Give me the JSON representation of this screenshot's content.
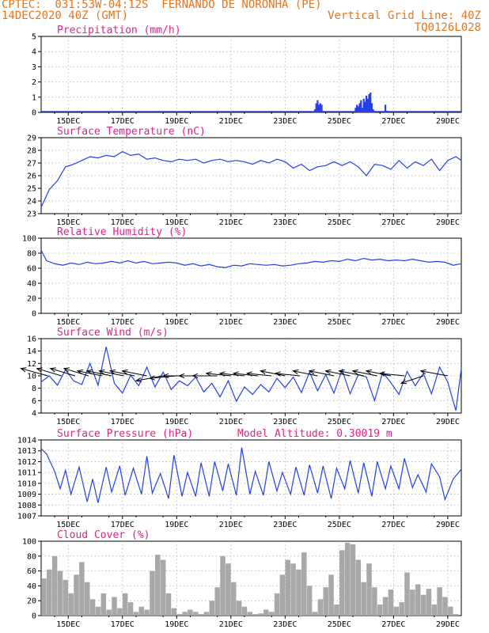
{
  "header": {
    "left_line1": "CPTEC:  031:53W-04:12S  FERNANDO DE NORONHA (PE)",
    "left_line2": "14DEC2020 40Z (GMT)",
    "right_line2": "Vertical Grid Line: 40Z",
    "right_line3": "TQ0126L028"
  },
  "x_axis": {
    "domain": [
      0,
      15.5
    ],
    "tick_positions": [
      1,
      3,
      5,
      7,
      9,
      11,
      13,
      15
    ],
    "tick_labels": [
      "15DEC",
      "17DEC",
      "19DEC",
      "21DEC",
      "23DEC",
      "25DEC",
      "27DEC",
      "29DEC"
    ]
  },
  "colors": {
    "line": "#2440e6",
    "bar_precip": "#2440e6",
    "bar_cloud": "#a8a8a8",
    "title": "#e0208c",
    "header": "#e8741c",
    "arrow": "#000000"
  },
  "chart_data": [
    {
      "type": "bar",
      "title": "Precipitation (mm/h)",
      "ylim": [
        0,
        5
      ],
      "yticks": [
        "0",
        "1",
        "2",
        "3",
        "4",
        "5"
      ],
      "x": [
        10.1,
        10.15,
        10.2,
        10.25,
        10.3,
        10.35,
        11.6,
        11.65,
        11.7,
        11.75,
        11.8,
        11.85,
        11.9,
        11.95,
        12.0,
        12.05,
        12.1,
        12.15,
        12.2,
        12.25,
        12.3,
        12.7,
        12.75
      ],
      "values": [
        0.2,
        0.6,
        0.8,
        0.5,
        0.6,
        0.5,
        0.3,
        0.5,
        0.4,
        0.6,
        0.8,
        0.3,
        0.9,
        0.7,
        1.1,
        0.9,
        1.2,
        1.3,
        0.6,
        0.2,
        0.1,
        0.5,
        0.1
      ]
    },
    {
      "type": "line",
      "title": "Surface Temperature (nC)",
      "ylim": [
        23,
        29
      ],
      "yticks": [
        "23",
        "24",
        "25",
        "26",
        "27",
        "28",
        "29"
      ],
      "x": [
        0,
        0.3,
        0.6,
        0.9,
        1.2,
        1.5,
        1.8,
        2.1,
        2.4,
        2.7,
        3.0,
        3.3,
        3.6,
        3.9,
        4.2,
        4.5,
        4.8,
        5.1,
        5.4,
        5.7,
        6.0,
        6.3,
        6.6,
        6.9,
        7.2,
        7.5,
        7.8,
        8.1,
        8.4,
        8.7,
        9.0,
        9.3,
        9.6,
        9.9,
        10.2,
        10.5,
        10.8,
        11.1,
        11.4,
        11.7,
        12.0,
        12.3,
        12.6,
        12.9,
        13.2,
        13.5,
        13.8,
        14.1,
        14.4,
        14.7,
        15.0,
        15.3,
        15.5
      ],
      "values": [
        23.5,
        24.9,
        25.6,
        26.7,
        26.9,
        27.2,
        27.5,
        27.4,
        27.6,
        27.5,
        27.9,
        27.6,
        27.7,
        27.3,
        27.4,
        27.2,
        27.1,
        27.3,
        27.2,
        27.3,
        27.0,
        27.2,
        27.3,
        27.1,
        27.2,
        27.1,
        26.9,
        27.2,
        27.0,
        27.3,
        27.1,
        26.6,
        26.9,
        26.4,
        26.7,
        26.8,
        27.1,
        26.8,
        27.1,
        26.7,
        26.0,
        26.9,
        26.8,
        26.5,
        27.2,
        26.6,
        27.1,
        26.8,
        27.3,
        26.4,
        27.2,
        27.5,
        27.2
      ]
    },
    {
      "type": "line",
      "title": "Relative Humidity (%)",
      "ylim": [
        0,
        100
      ],
      "yticks": [
        "0",
        "20",
        "40",
        "60",
        "80",
        "100"
      ],
      "x": [
        0,
        0.2,
        0.5,
        0.8,
        1.1,
        1.4,
        1.7,
        2.0,
        2.3,
        2.6,
        2.9,
        3.2,
        3.5,
        3.8,
        4.1,
        4.4,
        4.7,
        5.0,
        5.3,
        5.6,
        5.9,
        6.2,
        6.5,
        6.8,
        7.1,
        7.4,
        7.7,
        8.0,
        8.3,
        8.6,
        8.9,
        9.2,
        9.5,
        9.8,
        10.1,
        10.4,
        10.7,
        11.0,
        11.3,
        11.6,
        11.9,
        12.2,
        12.5,
        12.8,
        13.1,
        13.4,
        13.7,
        14.0,
        14.3,
        14.6,
        14.9,
        15.2,
        15.5
      ],
      "values": [
        84,
        70,
        66,
        64,
        67,
        65,
        68,
        66,
        67,
        69,
        67,
        70,
        67,
        69,
        66,
        67,
        68,
        67,
        64,
        66,
        63,
        65,
        62,
        61,
        64,
        63,
        66,
        65,
        64,
        65,
        63,
        64,
        66,
        67,
        69,
        68,
        70,
        69,
        72,
        70,
        73,
        71,
        72,
        70,
        71,
        70,
        72,
        70,
        68,
        69,
        68,
        64,
        66
      ]
    },
    {
      "type": "line",
      "title": "Surface Wind (m/s)",
      "ylim": [
        4,
        16
      ],
      "yticks": [
        "4",
        "6",
        "8",
        "10",
        "12",
        "14",
        "16"
      ],
      "x": [
        0,
        0.3,
        0.6,
        0.9,
        1.2,
        1.5,
        1.8,
        2.1,
        2.4,
        2.7,
        3.0,
        3.3,
        3.6,
        3.9,
        4.2,
        4.5,
        4.8,
        5.1,
        5.4,
        5.7,
        6.0,
        6.3,
        6.6,
        6.9,
        7.2,
        7.5,
        7.8,
        8.1,
        8.4,
        8.7,
        9.0,
        9.3,
        9.6,
        9.9,
        10.2,
        10.5,
        10.8,
        11.1,
        11.4,
        11.7,
        12.0,
        12.3,
        12.6,
        12.9,
        13.2,
        13.5,
        13.8,
        14.1,
        14.4,
        14.7,
        15.0,
        15.3,
        15.5
      ],
      "values": [
        9.0,
        10.0,
        8.5,
        11.0,
        9.2,
        8.6,
        12.0,
        8.5,
        14.7,
        8.8,
        7.2,
        10.1,
        8.4,
        11.4,
        8.2,
        10.6,
        7.8,
        9.2,
        8.4,
        9.8,
        7.4,
        8.8,
        6.6,
        9.2,
        5.9,
        8.2,
        7.0,
        8.6,
        7.4,
        9.6,
        8.1,
        9.8,
        7.3,
        10.6,
        7.6,
        10.2,
        7.2,
        11.0,
        7.1,
        10.2,
        9.8,
        6.0,
        10.6,
        8.9,
        7.0,
        10.7,
        8.4,
        10.4,
        7.1,
        11.4,
        9.0,
        4.4,
        11.2
      ]
    },
    {
      "type": "line",
      "title": "Surface Pressure (hPa)",
      "annotation": "Model Altitude: 0.30019 m",
      "ylim": [
        1007,
        1014
      ],
      "yticks": [
        "1007",
        "1008",
        "1009",
        "1010",
        "1011",
        "1012",
        "1013",
        "1014"
      ],
      "x": [
        0,
        0.2,
        0.5,
        0.7,
        0.9,
        1.1,
        1.4,
        1.7,
        1.9,
        2.1,
        2.4,
        2.6,
        2.9,
        3.1,
        3.4,
        3.7,
        3.9,
        4.1,
        4.4,
        4.7,
        4.9,
        5.2,
        5.4,
        5.7,
        5.9,
        6.2,
        6.4,
        6.7,
        6.9,
        7.2,
        7.4,
        7.7,
        7.9,
        8.2,
        8.4,
        8.7,
        8.9,
        9.2,
        9.4,
        9.7,
        9.9,
        10.2,
        10.4,
        10.7,
        10.9,
        11.2,
        11.4,
        11.7,
        11.9,
        12.2,
        12.4,
        12.7,
        12.9,
        13.2,
        13.4,
        13.7,
        13.9,
        14.2,
        14.4,
        14.7,
        14.9,
        15.2,
        15.5
      ],
      "values": [
        1013.2,
        1012.7,
        1011.1,
        1009.5,
        1011.2,
        1009.0,
        1011.5,
        1008.3,
        1010.4,
        1008.2,
        1011.5,
        1009.2,
        1011.6,
        1008.9,
        1011.4,
        1009.0,
        1012.5,
        1009.1,
        1010.9,
        1008.6,
        1012.6,
        1008.8,
        1011.0,
        1008.8,
        1011.9,
        1008.8,
        1012.0,
        1009.3,
        1011.8,
        1008.9,
        1013.3,
        1009.0,
        1011.1,
        1008.9,
        1012.0,
        1009.3,
        1011.0,
        1009.0,
        1011.5,
        1008.9,
        1011.7,
        1009.1,
        1011.6,
        1008.6,
        1011.4,
        1009.5,
        1012.1,
        1009.1,
        1011.9,
        1008.8,
        1012.0,
        1009.5,
        1011.6,
        1009.5,
        1012.3,
        1009.6,
        1010.8,
        1009.2,
        1011.8,
        1010.6,
        1008.5,
        1010.4,
        1011.3
      ]
    },
    {
      "type": "bar",
      "title": "Cloud Cover (%)",
      "ylim": [
        0,
        100
      ],
      "yticks": [
        "0",
        "20",
        "40",
        "60",
        "80",
        "100"
      ],
      "x": [
        0.1,
        0.3,
        0.5,
        0.7,
        0.9,
        1.1,
        1.3,
        1.5,
        1.7,
        1.9,
        2.1,
        2.3,
        2.5,
        2.7,
        2.9,
        3.1,
        3.3,
        3.5,
        3.7,
        3.9,
        4.1,
        4.3,
        4.5,
        4.7,
        4.9,
        5.1,
        5.3,
        5.5,
        5.7,
        5.9,
        6.1,
        6.3,
        6.5,
        6.7,
        6.9,
        7.1,
        7.3,
        7.5,
        7.7,
        7.9,
        8.1,
        8.3,
        8.5,
        8.7,
        8.9,
        9.1,
        9.3,
        9.5,
        9.7,
        9.9,
        10.1,
        10.3,
        10.5,
        10.7,
        10.9,
        11.1,
        11.3,
        11.5,
        11.7,
        11.9,
        12.1,
        12.3,
        12.5,
        12.7,
        12.9,
        13.1,
        13.3,
        13.5,
        13.7,
        13.9,
        14.1,
        14.3,
        14.5,
        14.7,
        14.9,
        15.1,
        15.3
      ],
      "values": [
        50,
        62,
        80,
        60,
        48,
        30,
        55,
        72,
        45,
        22,
        12,
        30,
        8,
        25,
        10,
        30,
        18,
        5,
        12,
        8,
        60,
        82,
        75,
        30,
        10,
        2,
        5,
        8,
        5,
        2,
        5,
        20,
        38,
        80,
        70,
        45,
        20,
        12,
        5,
        2,
        3,
        8,
        5,
        30,
        55,
        75,
        70,
        62,
        85,
        40,
        5,
        22,
        38,
        55,
        15,
        88,
        98,
        96,
        75,
        45,
        70,
        38,
        15,
        25,
        35,
        12,
        18,
        58,
        35,
        42,
        28,
        36,
        15,
        38,
        25,
        12,
        2
      ]
    }
  ],
  "wind_vectors": {
    "x": [
      0.25,
      0.75,
      1.25,
      1.75,
      2.25,
      2.6,
      3.05,
      3.45,
      3.9,
      4.5,
      5.0,
      5.5,
      6.0,
      6.5,
      7.0,
      7.5,
      8.0,
      8.5,
      9.0,
      9.55,
      10.2,
      10.8,
      11.4,
      11.9,
      12.4,
      12.9,
      13.4,
      14.1,
      15.0
    ],
    "u": [
      -11,
      -10,
      -10,
      -10,
      -10,
      -10,
      -10,
      -10,
      -10,
      -11,
      -11,
      -11,
      -10,
      -10,
      -10,
      -10,
      -10,
      -10,
      -10,
      -10,
      -10,
      -10,
      -10,
      -10,
      -10,
      -10,
      -10,
      -9,
      -11
    ],
    "v": [
      3,
      3,
      3,
      3,
      2,
      2,
      2,
      2,
      2,
      -2,
      -1,
      0,
      0,
      0,
      1,
      1,
      1,
      1,
      2,
      1,
      2,
      2,
      2,
      2,
      2,
      2,
      1,
      -3,
      2
    ]
  }
}
